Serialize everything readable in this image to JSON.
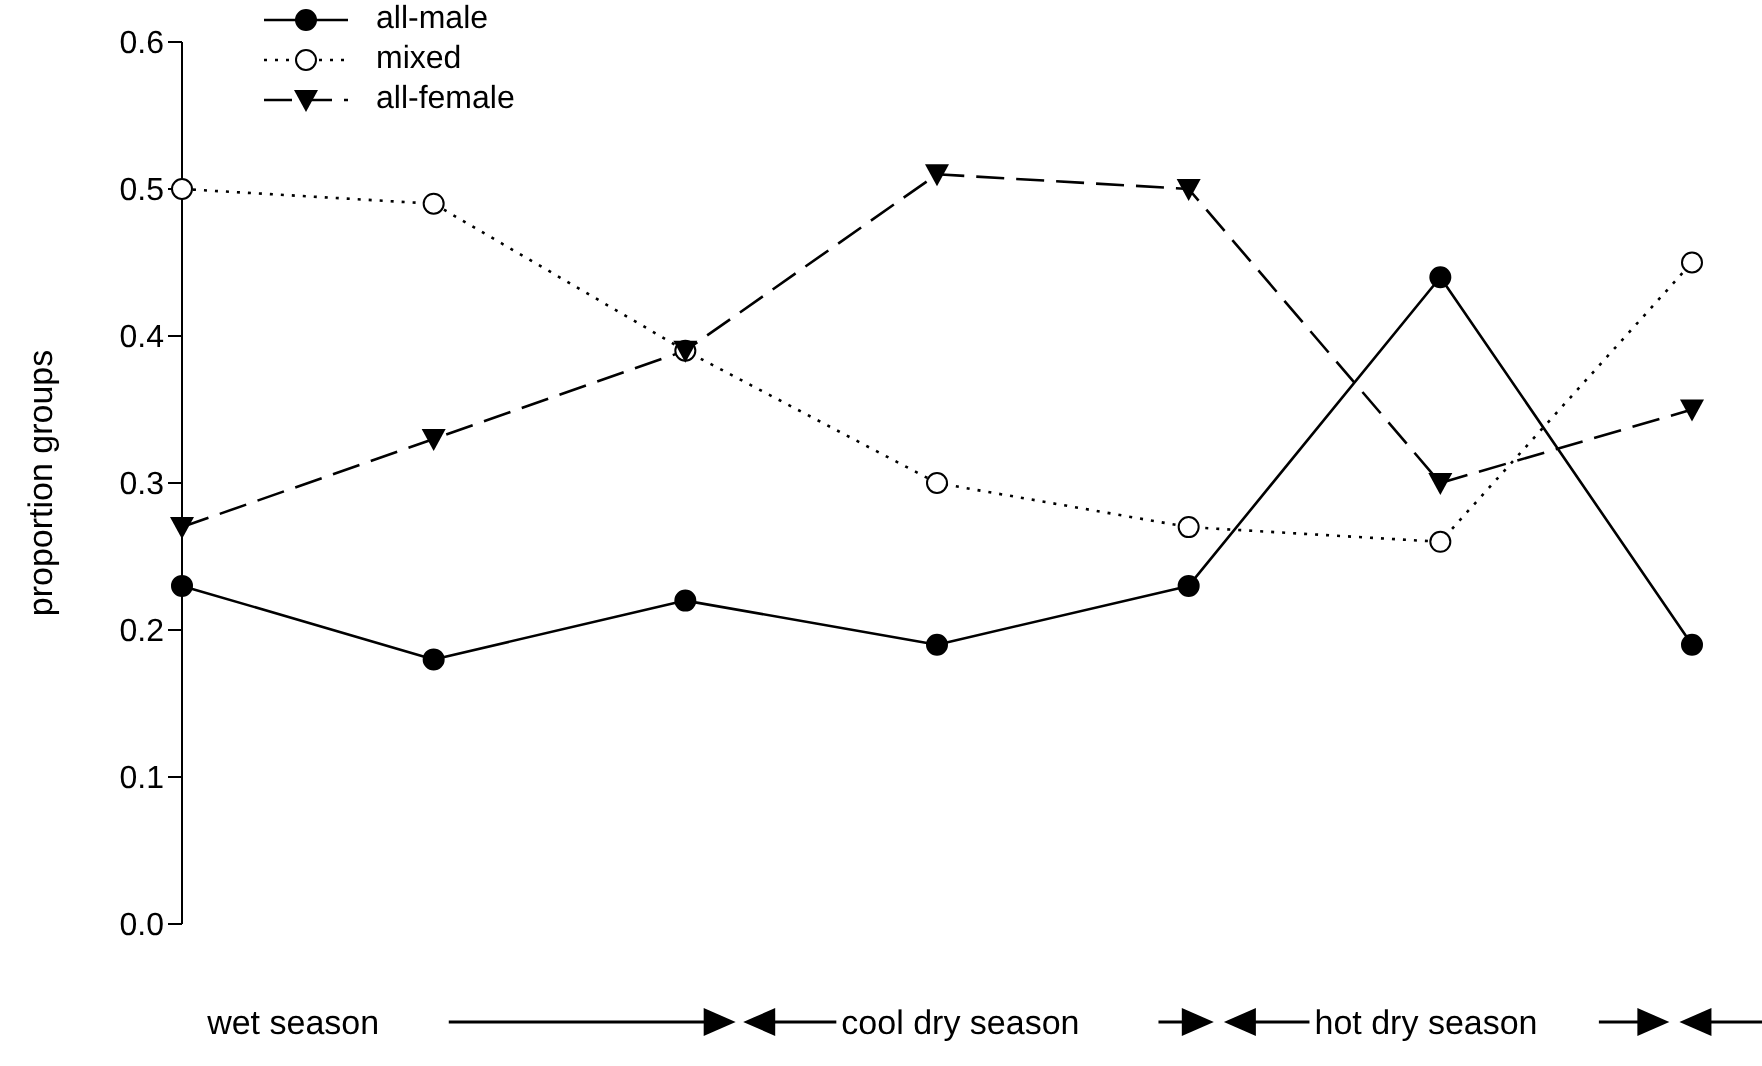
{
  "chart_data": {
    "type": "line",
    "ylabel": "proportion groups",
    "categories": [
      null,
      null,
      null,
      null,
      null,
      null,
      null
    ],
    "series": [
      {
        "name": "all-male",
        "color": "#000000",
        "marker": "circle",
        "line_style": "solid",
        "values": [
          0.23,
          0.18,
          0.22,
          0.19,
          0.23,
          0.44,
          0.19
        ]
      },
      {
        "name": "mixed",
        "color": "#000000",
        "marker": "circle",
        "line_style": "dotted",
        "values": [
          0.5,
          0.49,
          0.39,
          0.3,
          0.27,
          0.26,
          0.45
        ]
      },
      {
        "name": "all-female",
        "color": "#000000",
        "marker": "triangle",
        "line_style": "dashed",
        "values": [
          0.27,
          0.33,
          0.39,
          0.51,
          0.5,
          0.3,
          0.35
        ]
      }
    ],
    "ylim": [
      0,
      0.6
    ],
    "yticks": [
      {
        "value": 0,
        "label": "0.0"
      },
      0.1,
      0.2,
      0.3,
      0.4,
      0.5,
      0.6
    ],
    "grid": false,
    "legend": "top left",
    "annotations": [
      "wet season",
      "cool dry season",
      "hot dry season"
    ]
  }
}
